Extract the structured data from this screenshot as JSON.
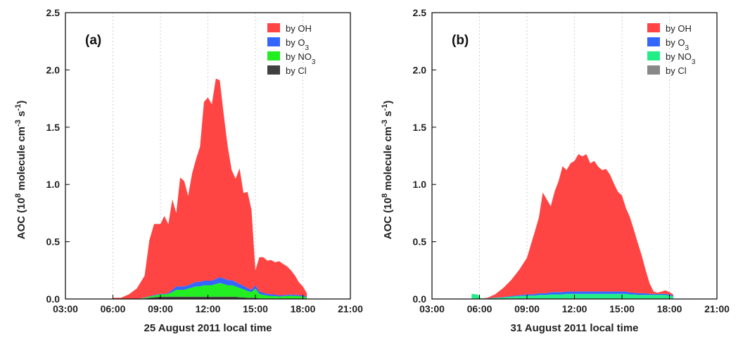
{
  "chart_data": [
    {
      "type": "area",
      "stacked": true,
      "panel_label": "(a)",
      "xlabel": "25 August 2011 local time",
      "ylabel": "AOC (10⁸ molecule cm⁻³ s⁻¹)",
      "xlim": [
        3,
        21
      ],
      "ylim": [
        0,
        2.5
      ],
      "xticks": [
        3,
        6,
        9,
        12,
        15,
        18,
        21
      ],
      "xtick_labels": [
        "03:00",
        "06:00",
        "09:00",
        "12:00",
        "15:00",
        "18:00",
        "21:00"
      ],
      "yticks": [
        0,
        0.5,
        1.0,
        1.5,
        2.0,
        2.5
      ],
      "ytick_labels": [
        "0.0",
        "0.5",
        "1.0",
        "1.5",
        "2.0",
        "2.5"
      ],
      "grid": "vertical dotted",
      "legend_position": "top-right",
      "x": [
        6.0,
        6.5,
        7.0,
        7.5,
        8.0,
        8.3,
        8.6,
        9.0,
        9.25,
        9.5,
        9.75,
        10.0,
        10.25,
        10.5,
        10.75,
        11.0,
        11.25,
        11.5,
        11.75,
        12.0,
        12.25,
        12.5,
        12.75,
        13.0,
        13.25,
        13.5,
        13.75,
        14.0,
        14.25,
        14.5,
        14.75,
        15.0,
        15.25,
        15.5,
        15.75,
        16.0,
        16.25,
        16.5,
        16.75,
        17.0,
        17.25,
        17.5,
        17.75,
        18.0,
        18.25
      ],
      "series": [
        {
          "name": "by Cl",
          "legend_label": "by Cl",
          "color": "#404040",
          "values": [
            0,
            0,
            0,
            0,
            0.005,
            0.01,
            0.015,
            0.02,
            0.02,
            0.02,
            0.02,
            0.02,
            0.02,
            0.02,
            0.02,
            0.02,
            0.02,
            0.02,
            0.02,
            0.02,
            0.02,
            0.02,
            0.02,
            0.02,
            0.02,
            0.02,
            0.02,
            0.015,
            0.015,
            0.01,
            0.01,
            0.01,
            0.005,
            0.005,
            0.005,
            0.005,
            0.005,
            0.005,
            0.005,
            0.005,
            0.005,
            0.005,
            0.005,
            0.005,
            0.005
          ]
        },
        {
          "name": "by NO3",
          "legend_label": "by NO",
          "legend_sub": "3",
          "color": "#22ee22",
          "values": [
            0,
            0,
            0,
            0,
            0.005,
            0.01,
            0.015,
            0.02,
            0.02,
            0.025,
            0.04,
            0.06,
            0.06,
            0.06,
            0.07,
            0.08,
            0.09,
            0.09,
            0.1,
            0.1,
            0.1,
            0.11,
            0.12,
            0.11,
            0.1,
            0.1,
            0.09,
            0.08,
            0.07,
            0.06,
            0.05,
            0.08,
            0.04,
            0.03,
            0.025,
            0.02,
            0.02,
            0.015,
            0.02,
            0.02,
            0.025,
            0.02,
            0.02,
            0.015,
            0.01
          ]
        },
        {
          "name": "by O3",
          "legend_label": "by O",
          "legend_sub": "3",
          "color": "#3366ff",
          "values": [
            0,
            0,
            0,
            0,
            0.002,
            0.003,
            0.005,
            0.005,
            0.005,
            0.008,
            0.02,
            0.03,
            0.03,
            0.03,
            0.03,
            0.035,
            0.04,
            0.04,
            0.04,
            0.04,
            0.04,
            0.045,
            0.05,
            0.05,
            0.045,
            0.045,
            0.04,
            0.035,
            0.03,
            0.025,
            0.02,
            0.03,
            0.02,
            0.02,
            0.015,
            0.015,
            0.015,
            0.01,
            0.01,
            0.01,
            0.01,
            0.01,
            0.01,
            0.01,
            0.005
          ]
        },
        {
          "name": "by OH",
          "legend_label": "by OH",
          "color": "#ff4444",
          "values": [
            0.01,
            0.01,
            0.04,
            0.09,
            0.19,
            0.49,
            0.62,
            0.61,
            0.68,
            0.6,
            0.79,
            0.64,
            0.95,
            0.92,
            0.78,
            0.96,
            1.07,
            1.18,
            1.56,
            1.6,
            1.54,
            1.75,
            1.72,
            1.43,
            1.17,
            0.96,
            0.9,
            1.01,
            0.81,
            0.84,
            0.7,
            0.13,
            0.3,
            0.31,
            0.29,
            0.3,
            0.28,
            0.3,
            0.27,
            0.25,
            0.21,
            0.17,
            0.11,
            0.08,
            0.03
          ]
        }
      ]
    },
    {
      "type": "area",
      "stacked": true,
      "panel_label": "(b)",
      "xlabel": "31 August 2011 local time",
      "ylabel": "AOC (10⁸ molecule cm⁻³ s⁻¹)",
      "xlim": [
        3,
        21
      ],
      "ylim": [
        0,
        2.5
      ],
      "xticks": [
        3,
        6,
        9,
        12,
        15,
        18,
        21
      ],
      "xtick_labels": [
        "03:00",
        "06:00",
        "09:00",
        "12:00",
        "15:00",
        "18:00",
        "21:00"
      ],
      "yticks": [
        0,
        0.5,
        1.0,
        1.5,
        2.0,
        2.5
      ],
      "ytick_labels": [
        "0.0",
        "0.5",
        "1.0",
        "1.5",
        "2.0",
        "2.5"
      ],
      "grid": "vertical dotted",
      "legend_position": "top-right",
      "x": [
        5.5,
        5.9,
        6.1,
        6.5,
        7.0,
        7.5,
        8.0,
        8.5,
        9.0,
        9.5,
        9.75,
        10.0,
        10.25,
        10.5,
        10.75,
        11.0,
        11.25,
        11.5,
        11.75,
        12.0,
        12.25,
        12.5,
        12.75,
        13.0,
        13.25,
        13.5,
        13.75,
        14.0,
        14.25,
        14.5,
        14.75,
        15.0,
        15.25,
        15.5,
        15.75,
        16.0,
        16.25,
        16.5,
        16.75,
        17.0,
        17.25,
        17.5,
        17.75,
        18.0,
        18.25
      ],
      "series": [
        {
          "name": "by Cl",
          "legend_label": "by Cl",
          "color": "#888888",
          "values": [
            0.005,
            0.003,
            0,
            0,
            0.002,
            0.003,
            0.005,
            0.005,
            0.005,
            0.005,
            0.005,
            0.005,
            0.005,
            0.005,
            0.005,
            0.005,
            0.005,
            0.005,
            0.005,
            0.005,
            0.005,
            0.005,
            0.005,
            0.005,
            0.005,
            0.005,
            0.005,
            0.005,
            0.005,
            0.005,
            0.005,
            0.005,
            0.005,
            0.005,
            0.005,
            0.005,
            0.005,
            0.005,
            0.005,
            0.005,
            0.005,
            0.005,
            0.005,
            0.005,
            0.003
          ]
        },
        {
          "name": "by NO3",
          "legend_label": "by NO",
          "legend_sub": "3",
          "color": "#22ee88",
          "values": [
            0.04,
            0.035,
            0.005,
            0.005,
            0.008,
            0.01,
            0.015,
            0.02,
            0.025,
            0.025,
            0.03,
            0.03,
            0.03,
            0.035,
            0.035,
            0.035,
            0.035,
            0.04,
            0.04,
            0.04,
            0.04,
            0.04,
            0.04,
            0.04,
            0.04,
            0.04,
            0.04,
            0.04,
            0.04,
            0.04,
            0.04,
            0.04,
            0.04,
            0.035,
            0.035,
            0.03,
            0.03,
            0.03,
            0.03,
            0.03,
            0.03,
            0.03,
            0.03,
            0.025,
            0.02
          ]
        },
        {
          "name": "by O3",
          "legend_label": "by O",
          "legend_sub": "3",
          "color": "#3366ff",
          "values": [
            0,
            0,
            0,
            0,
            0.002,
            0.003,
            0.005,
            0.008,
            0.01,
            0.012,
            0.015,
            0.015,
            0.015,
            0.02,
            0.02,
            0.02,
            0.02,
            0.02,
            0.02,
            0.02,
            0.02,
            0.02,
            0.02,
            0.02,
            0.02,
            0.02,
            0.02,
            0.02,
            0.02,
            0.02,
            0.02,
            0.02,
            0.02,
            0.015,
            0.015,
            0.015,
            0.015,
            0.015,
            0.01,
            0.01,
            0.01,
            0.01,
            0.01,
            0.01,
            0.005
          ]
        },
        {
          "name": "by OH",
          "legend_label": "by OH",
          "color": "#ff4444",
          "values": [
            0,
            0,
            0,
            0.005,
            0.03,
            0.08,
            0.14,
            0.22,
            0.32,
            0.55,
            0.66,
            0.88,
            0.82,
            0.75,
            0.88,
            0.97,
            1.1,
            1.06,
            1.12,
            1.14,
            1.2,
            1.18,
            1.2,
            1.12,
            1.14,
            1.09,
            1.06,
            1.07,
            1.02,
            0.94,
            0.87,
            0.84,
            0.73,
            0.66,
            0.55,
            0.44,
            0.33,
            0.2,
            0.09,
            0.02,
            0.01,
            0.02,
            0.03,
            0.02,
            0.01
          ]
        }
      ]
    }
  ]
}
